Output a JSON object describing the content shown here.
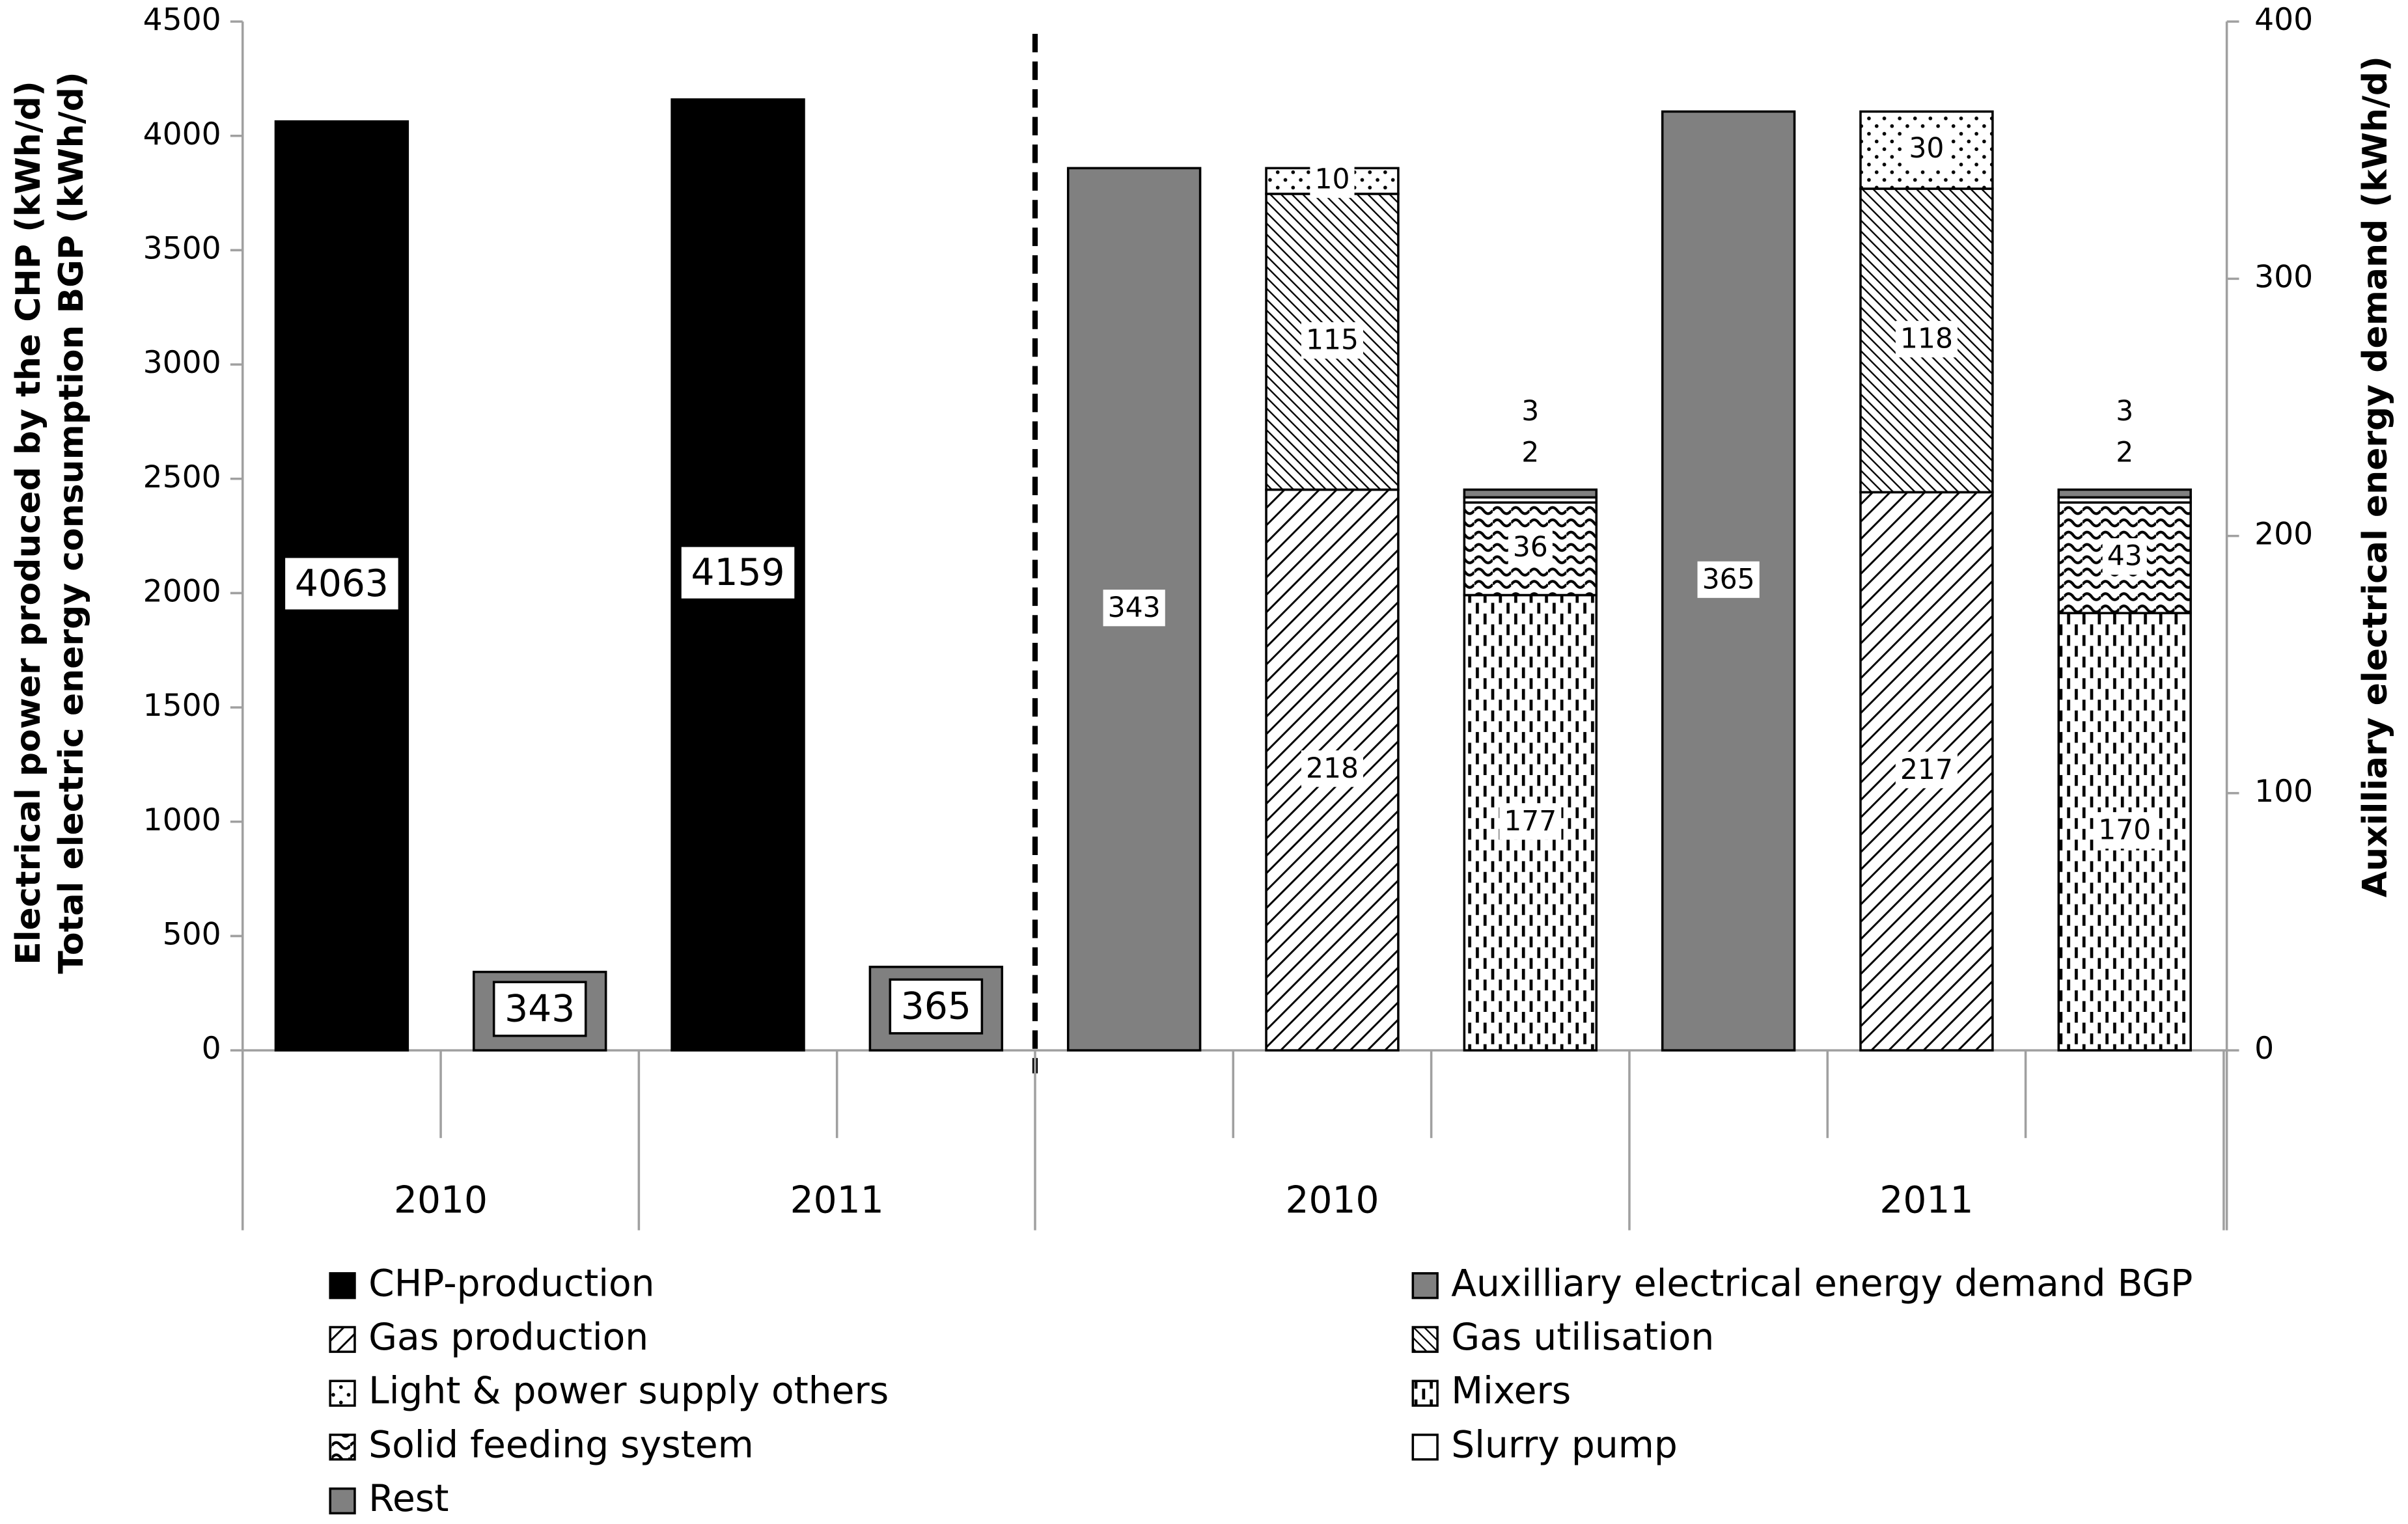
{
  "chart_data": {
    "type": "bar",
    "ylabel": [
      "Electrical power produced by the CHP (kWh/d)",
      "Total electric energy consumption BGP (kWh/d)"
    ],
    "y2label": "Auxilliary electrical energy demand (kWh/d)",
    "categories": [
      "2010",
      "2011",
      "2010",
      "2011"
    ],
    "ylim": [
      0,
      4500
    ],
    "yticks": [
      0,
      500,
      1000,
      1500,
      2000,
      2500,
      3000,
      3500,
      4000,
      4500
    ],
    "y2lim": [
      0,
      400
    ],
    "y2ticks": [
      0,
      100,
      200,
      300,
      400
    ],
    "series": [
      {
        "name": "CHP-production",
        "color": "#000000",
        "values": [
          4063,
          4159,
          null,
          null
        ]
      },
      {
        "name": "Auxilliary electrical energy demand BGP",
        "color": "#808080",
        "values": [
          null,
          null,
          343,
          365
        ]
      },
      {
        "name": "Gas production",
        "color": "#ffffff",
        "pattern": "wide-downward-diagonal",
        "values": [
          null,
          null,
          218,
          217
        ]
      },
      {
        "name": "Gas utilisation",
        "color": "#ffffff",
        "pattern": "dark-upward-diagonal",
        "values": [
          null,
          null,
          115,
          118
        ]
      },
      {
        "name": "Light & power supply others",
        "color": "#ffffff",
        "pattern": "dotted",
        "values": [
          null,
          null,
          10,
          30
        ]
      },
      {
        "name": "Mixers",
        "color": "#ffffff",
        "pattern": "dashed-vertical",
        "values": [
          null,
          null,
          177,
          170
        ]
      },
      {
        "name": "Solid feeding system",
        "color": "#ffffff",
        "pattern": "wave",
        "values": [
          null,
          null,
          36,
          43
        ]
      },
      {
        "name": "Slurry pump",
        "color": "#ffffff",
        "values": [
          null,
          null,
          2,
          2
        ]
      },
      {
        "name": "Rest",
        "color": "#808080",
        "values": [
          343,
          365,
          3,
          3
        ]
      }
    ]
  }
}
